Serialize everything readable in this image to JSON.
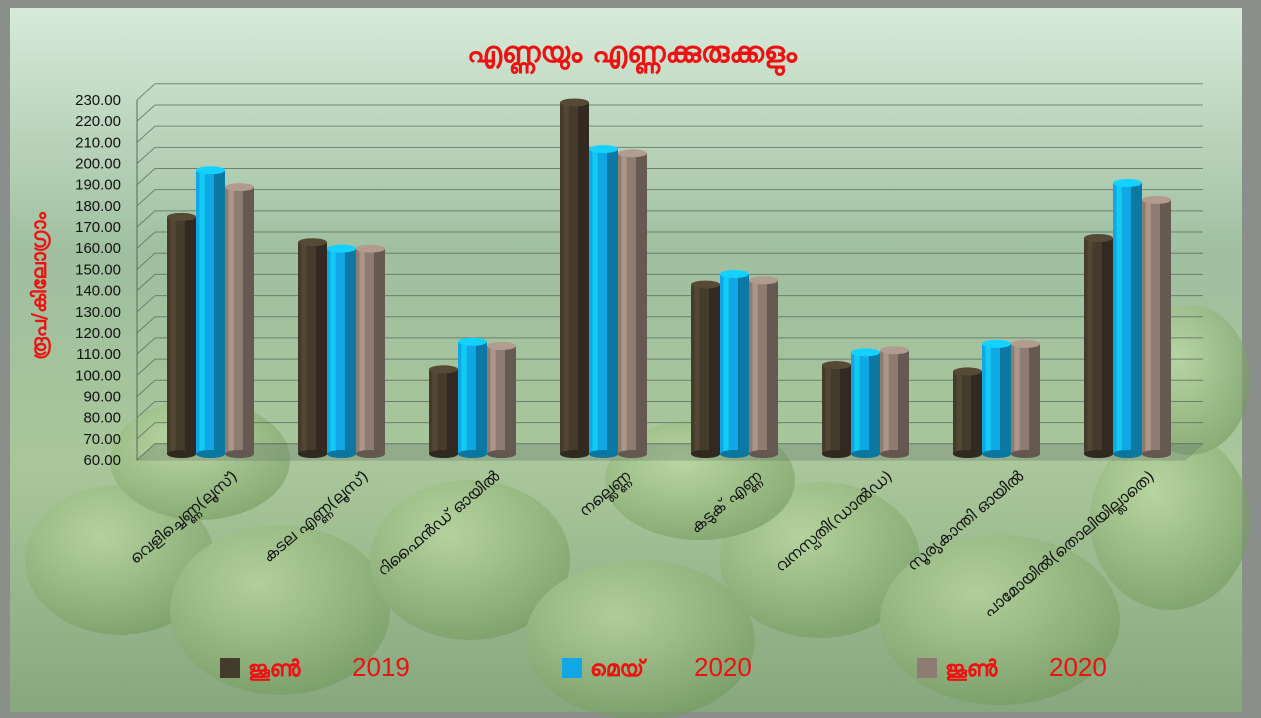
{
  "chart_data": {
    "type": "bar",
    "title": "എണ്ണയും എണ്ണക്കുരുക്കളും",
    "ylabel": "രൂപ/കിലോഗ്രാം",
    "ylim": [
      60,
      230
    ],
    "ytick_step": 10,
    "ytick_labels": [
      "60.00",
      "70.00",
      "80.00",
      "90.00",
      "100.00",
      "110.00",
      "120.00",
      "130.00",
      "140.00",
      "150.00",
      "160.00",
      "170.00",
      "180.00",
      "190.00",
      "200.00",
      "210.00",
      "220.00",
      "230.00"
    ],
    "categories": [
      "വെളിച്ചെണ്ണ(ലൂസ്)",
      "കടല എണ്ണ(ലൂസ്)",
      "റിഫൈൻഡ് ഓയിൽ",
      "നല്ലെണ്ണ",
      "കടുക് എണ്ണ",
      "വനസ്പതി(ഡാൽഡ)",
      "സൂര്യകാന്തി ഓയിൽ",
      "പാമോയിൽ(തൊലിയില്ലാതെ)"
    ],
    "series": [
      {
        "name": "ജൂൺ 2019",
        "color": "#453b2c",
        "values": [
          172,
          160,
          100,
          226,
          140,
          102,
          99,
          162
        ]
      },
      {
        "name": "മെയ് 2020",
        "color": "#0fa8e4",
        "values": [
          194,
          157,
          113,
          204,
          145,
          108,
          112,
          188
        ]
      },
      {
        "name": "ജൂൺ 2020",
        "color": "#8e7c72",
        "values": [
          186,
          157,
          111,
          202,
          142,
          109,
          112,
          180
        ]
      }
    ],
    "legend": [
      {
        "label": "ജൂൺ",
        "year": "2019"
      },
      {
        "label": "മെയ്",
        "year": "2020"
      },
      {
        "label": "ജൂൺ",
        "year": "2020"
      }
    ],
    "legend_position": "bottom",
    "grid": true
  },
  "colors": {
    "title": "#ee1111",
    "ylabel": "#ee1111",
    "legend_text": "#ee1111"
  }
}
